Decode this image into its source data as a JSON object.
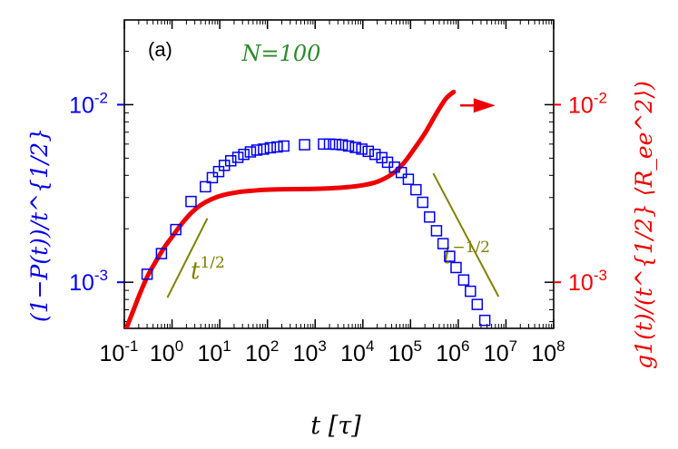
{
  "chart_data": {
    "type": "scatter",
    "panel_label": "(a)",
    "annotation": "N=100",
    "xlabel": "t [τ]",
    "x_scale": "log",
    "xlim": [
      0.1,
      100000000
    ],
    "x_ticks": [
      {
        "value": 0.1,
        "mant": "10",
        "exp": "-1"
      },
      {
        "value": 1,
        "mant": "10",
        "exp": "0"
      },
      {
        "value": 10,
        "mant": "10",
        "exp": "1"
      },
      {
        "value": 100,
        "mant": "10",
        "exp": "2"
      },
      {
        "value": 1000,
        "mant": "10",
        "exp": "3"
      },
      {
        "value": 10000,
        "mant": "10",
        "exp": "4"
      },
      {
        "value": 100000,
        "mant": "10",
        "exp": "5"
      },
      {
        "value": 1000000,
        "mant": "10",
        "exp": "6"
      },
      {
        "value": 10000000,
        "mant": "10",
        "exp": "7"
      },
      {
        "value": 100000000,
        "mant": "10",
        "exp": "8"
      }
    ],
    "left_axis": {
      "label": "(1−P(t))/t^{1/2}",
      "color": "#0000ee",
      "scale": "log",
      "ylim": [
        0.00055,
        0.03
      ],
      "ticks": [
        {
          "value": 0.001,
          "mant": "10",
          "exp": "-3"
        },
        {
          "value": 0.01,
          "mant": "10",
          "exp": "-2"
        }
      ]
    },
    "right_axis": {
      "label": "g1(t)/(t^{1/2} ⟨R_ee^2⟩)",
      "color": "#ee0000",
      "scale": "log",
      "ylim": [
        0.00055,
        0.03
      ],
      "ticks": [
        {
          "value": 0.001,
          "mant": "10",
          "exp": "-3"
        },
        {
          "value": 0.01,
          "mant": "10",
          "exp": "-2"
        }
      ]
    },
    "series": [
      {
        "name": "(1−P(t))/t^{1/2}",
        "axis": "left",
        "marker": "open-square",
        "color": "#0000ee",
        "x": [
          0.3,
          0.6,
          1.2,
          2.5,
          5,
          7,
          9.5,
          12.5,
          17,
          24,
          32,
          44,
          60,
          83,
          115,
          160,
          220,
          600,
          1500,
          2000,
          2700,
          3700,
          5000,
          7000,
          9500,
          13000,
          18000,
          25000,
          33000,
          46000,
          64000,
          90000,
          130000,
          180000,
          250000,
          350000,
          480000,
          660000,
          900000,
          1300000,
          1800000,
          2500000,
          3600000
        ],
        "y": [
          0.00111,
          0.00145,
          0.00198,
          0.00285,
          0.00345,
          0.00388,
          0.0042,
          0.00455,
          0.00483,
          0.00505,
          0.00525,
          0.00542,
          0.00555,
          0.00562,
          0.00572,
          0.00578,
          0.00585,
          0.00595,
          0.006,
          0.006,
          0.00598,
          0.00594,
          0.00585,
          0.00574,
          0.00562,
          0.00546,
          0.00525,
          0.00503,
          0.00474,
          0.00445,
          0.00415,
          0.0038,
          0.00332,
          0.00282,
          0.00233,
          0.00195,
          0.00165,
          0.0014,
          0.00121,
          0.00103,
          0.00089,
          0.00075,
          0.00061
        ]
      },
      {
        "name": "g1(t)/(t^{1/2}⟨R_ee^2⟩)",
        "axis": "right",
        "line": "solid",
        "color": "#ee0000",
        "x": [
          0.11,
          0.15,
          0.2,
          0.3,
          0.45,
          0.7,
          1,
          1.5,
          2.5,
          4,
          7,
          12,
          25,
          50,
          100,
          250,
          600,
          1500,
          4000,
          10000,
          20000,
          40000,
          70000,
          120000,
          200000,
          350000,
          550000,
          800000
        ],
        "y": [
          0.00055,
          0.00068,
          0.00083,
          0.00107,
          0.0013,
          0.00158,
          0.0018,
          0.00209,
          0.00245,
          0.00272,
          0.00295,
          0.0031,
          0.00322,
          0.00328,
          0.00332,
          0.00334,
          0.00335,
          0.00337,
          0.00342,
          0.00352,
          0.00368,
          0.00405,
          0.00465,
          0.00565,
          0.0069,
          0.00895,
          0.0108,
          0.0118
        ]
      }
    ],
    "guide_lines": [
      {
        "label": "t^{1/2}",
        "slope_label_base": "t",
        "slope_label_exp": "1/2",
        "color": "#808000",
        "x": [
          0.8,
          5.5
        ],
        "y": [
          0.00082,
          0.00229
        ]
      },
      {
        "label": "t^{-1/2}",
        "slope_label_base": "t",
        "slope_label_exp": "−1/2",
        "color": "#808000",
        "x": [
          300000,
          7000000
        ],
        "y": [
          0.0041,
          0.00083
        ]
      }
    ],
    "arrow": {
      "direction": "right",
      "points_to": "right axis",
      "color": "#ee0000",
      "x": [
        1100000,
        6000000
      ],
      "y": [
        0.0099,
        0.0099
      ]
    }
  }
}
